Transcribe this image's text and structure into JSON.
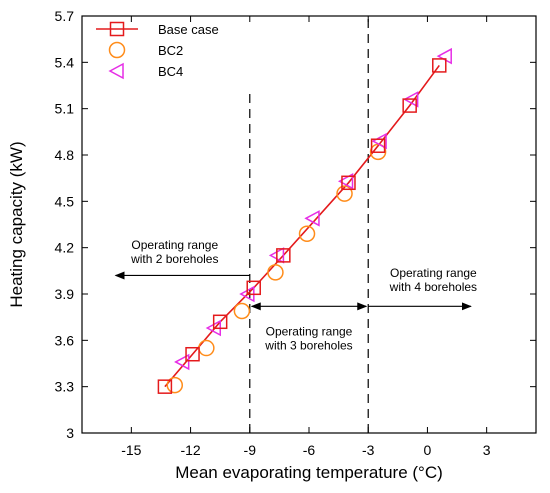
{
  "chart_data": {
    "type": "line",
    "xlabel": "Mean evaporating temperature (°C)",
    "ylabel": "Heating capacity (kW)",
    "xlim": [
      -17.5,
      5.5
    ],
    "ylim": [
      3.0,
      5.7
    ],
    "xticks": [
      -15,
      -12,
      -9,
      -6,
      -3,
      0,
      3
    ],
    "yticks": [
      3.0,
      3.3,
      3.6,
      3.9,
      4.2,
      4.5,
      4.8,
      5.1,
      5.4,
      5.7
    ],
    "ytick_labels": [
      "3",
      "3.3",
      "3.6",
      "3.9",
      "4.2",
      "4.5",
      "4.8",
      "5.1",
      "5.4",
      "5.7"
    ],
    "grid": false,
    "legend_position": "top-left",
    "series": [
      {
        "name": "Base case",
        "marker": "square",
        "line": true,
        "color": "#e41a1c",
        "x": [
          -13.3,
          -11.9,
          -10.5,
          -8.8,
          -7.3,
          -4.0,
          -2.5,
          -0.9,
          0.6
        ],
        "y": [
          3.3,
          3.51,
          3.72,
          3.94,
          4.15,
          4.62,
          4.86,
          5.12,
          5.38
        ]
      },
      {
        "name": "BC2",
        "marker": "circle",
        "line": false,
        "color": "#ff8c1a",
        "x": [
          -12.8,
          -11.2,
          -9.4,
          -7.7,
          -6.1,
          -4.2,
          -2.5
        ],
        "y": [
          3.31,
          3.55,
          3.79,
          4.04,
          4.29,
          4.55,
          4.82
        ]
      },
      {
        "name": "BC4",
        "marker": "triangle-left",
        "line": false,
        "color": "#e62ee6",
        "x": [
          -12.4,
          -10.8,
          -9.1,
          -7.6,
          -5.8,
          -4.1,
          -2.4,
          -0.8,
          0.9
        ],
        "y": [
          3.46,
          3.68,
          3.9,
          4.15,
          4.39,
          4.63,
          4.89,
          5.16,
          5.44
        ]
      }
    ],
    "boundaries": [
      {
        "x": -9,
        "y_from": 3.0,
        "y_to": 5.22
      },
      {
        "x": -3,
        "y_from": 3.0,
        "y_to": 5.7
      }
    ],
    "annotations": [
      {
        "lines": [
          "Operating range",
          "with 2 boreholes"
        ],
        "arrow": {
          "x_from": -9,
          "x_to": -15.8,
          "y": 4.02
        }
      },
      {
        "lines": [
          "Operating range",
          "with 3 boreholes"
        ],
        "arrow": {
          "x_from": -8.9,
          "x_to": -3.1,
          "y": 3.82,
          "both_ends": true
        }
      },
      {
        "lines": [
          "Operating range",
          "with 4 boreholes"
        ],
        "arrow": {
          "x_from": -3,
          "x_to": 2.2,
          "y": 3.82
        }
      }
    ],
    "colors": {
      "axis": "#000000",
      "text": "#000000",
      "boundary": "#000000"
    }
  }
}
